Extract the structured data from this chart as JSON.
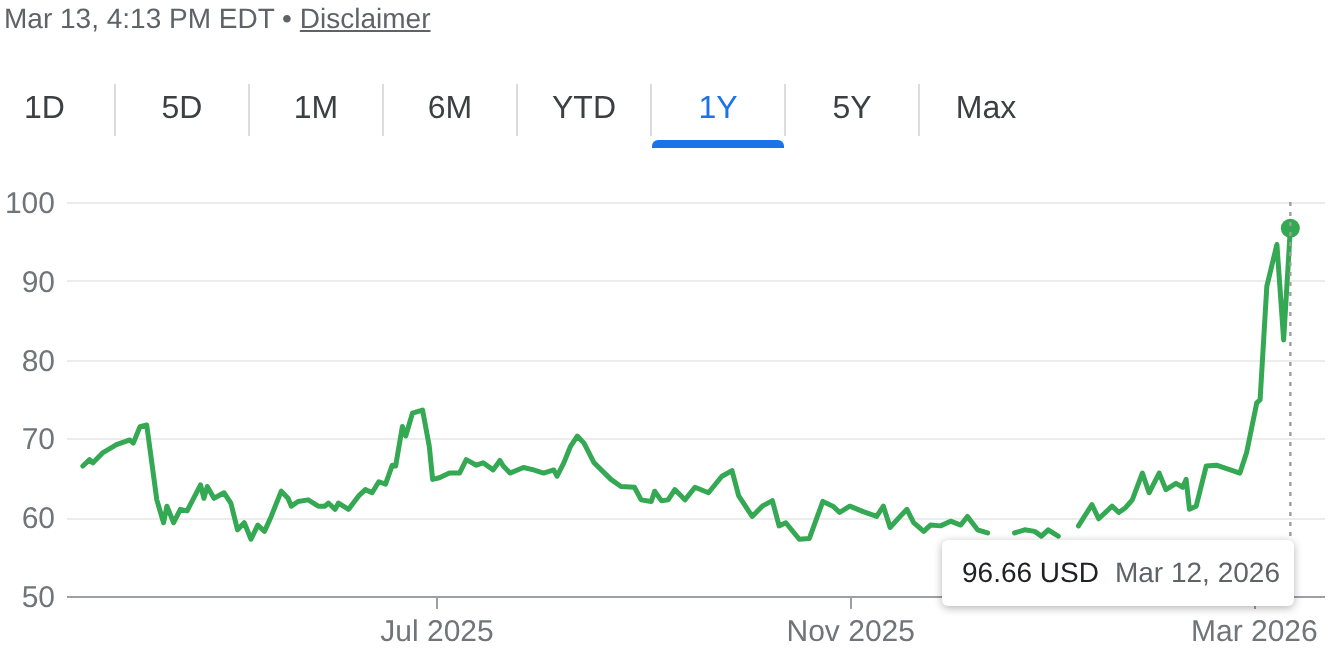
{
  "chart_data": {
    "type": "line",
    "annotations": [
      "Mar 13, 4:13 PM EDT •",
      "Disclaimer",
      "1D",
      "5D",
      "1M",
      "6M",
      "YTD",
      "1Y",
      "5Y",
      "Max",
      "96.66 USD",
      "Mar 12, 2026"
    ],
    "xlim": [
      "2025-03-13",
      "2026-03-22"
    ],
    "xticks": [
      {
        "value": "2025-07-01",
        "label": "Jul 2025"
      },
      {
        "value": "2025-11-01",
        "label": "Nov 2025"
      },
      {
        "value": "2026-03-01",
        "label": "Mar 2026"
      }
    ],
    "ylim": [
      50,
      100
    ],
    "yticks": [
      50,
      60,
      70,
      80,
      90,
      100
    ],
    "grid": "y",
    "ref_lines": [
      {
        "axis": "x",
        "value": "2026-03-12",
        "color": "#9e9e9e",
        "line_style": "dotted"
      }
    ],
    "series": [
      {
        "type": "line",
        "color": "#34a853",
        "x": [
          "2025-03-18",
          "2025-03-20",
          "2025-03-21",
          "2025-03-24",
          "2025-03-28",
          "2025-04-01",
          "2025-04-02",
          "2025-04-04",
          "2025-04-06",
          "2025-04-09",
          "2025-04-11",
          "2025-04-12",
          "2025-04-14",
          "2025-04-16",
          "2025-04-18",
          "2025-04-22",
          "2025-04-23",
          "2025-04-24",
          "2025-04-26",
          "2025-04-29",
          "2025-05-01",
          "2025-05-03",
          "2025-05-05",
          "2025-05-07",
          "2025-05-09",
          "2025-05-11",
          "2025-05-13",
          "2025-05-16",
          "2025-05-18",
          "2025-05-19",
          "2025-05-21",
          "2025-05-24",
          "2025-05-27",
          "2025-05-29",
          "2025-05-30",
          "2025-06-01",
          "2025-06-02",
          "2025-06-05",
          "2025-06-08",
          "2025-06-10",
          "2025-06-12",
          "2025-06-14",
          "2025-06-16",
          "2025-06-18",
          "2025-06-19",
          "2025-06-21",
          "2025-06-22",
          "2025-06-24",
          "2025-06-27",
          "2025-06-29",
          "2025-06-30",
          "2025-07-02",
          "2025-07-05",
          "2025-07-08",
          "2025-07-10",
          "2025-07-13",
          "2025-07-15",
          "2025-07-18",
          "2025-07-20",
          "2025-07-21",
          "2025-07-23",
          "2025-07-27",
          "2025-07-30",
          "2025-08-02",
          "2025-08-05",
          "2025-08-06",
          "2025-08-08",
          "2025-08-10",
          "2025-08-12",
          "2025-08-14",
          "2025-08-17",
          "2025-08-22",
          "2025-08-25",
          "2025-08-29",
          "2025-08-31",
          "2025-09-03",
          "2025-09-04",
          "2025-09-06",
          "2025-09-08",
          "2025-09-10",
          "2025-09-13",
          "2025-09-16",
          "2025-09-20",
          "2025-09-24",
          "2025-09-27",
          "2025-09-29",
          "2025-10-03",
          "2025-10-06",
          "2025-10-09",
          "2025-10-11",
          "2025-10-13",
          "2025-10-17",
          "2025-10-20",
          "2025-10-24",
          "2025-10-27",
          "2025-10-29",
          "2025-11-01",
          "2025-11-05",
          "2025-11-09",
          "2025-11-11",
          "2025-11-13",
          "2025-11-16",
          "2025-11-18",
          "2025-11-20",
          "2025-11-23",
          "2025-11-25",
          "2025-11-28",
          "2025-12-01",
          "2025-12-04",
          "2025-12-06",
          "2025-12-09",
          "2025-12-12",
          "2025-12-15",
          "2025-12-20",
          "2025-12-23",
          "2025-12-26",
          "2025-12-28",
          "2025-12-30",
          "2026-01-02",
          "2026-01-05",
          "2026-01-08",
          "2026-01-12",
          "2026-01-14",
          "2026-01-18",
          "2026-01-20",
          "2026-01-22",
          "2026-01-24",
          "2026-01-27",
          "2026-01-29",
          "2026-02-01",
          "2026-02-03",
          "2026-02-06",
          "2026-02-08",
          "2026-02-09",
          "2026-02-10",
          "2026-02-12",
          "2026-02-15",
          "2026-02-18",
          "2026-02-25",
          "2026-02-27",
          "2026-03-02",
          "2026-03-03",
          "2026-03-05",
          "2026-03-08",
          "2026-03-10",
          "2026-03-12"
        ],
        "values": [
          66.5,
          67.3,
          66.9,
          68.2,
          69.2,
          69.8,
          69.4,
          71.5,
          71.7,
          62.2,
          59.3,
          61.4,
          59.3,
          61.0,
          60.8,
          64.1,
          62.4,
          63.9,
          62.4,
          63.1,
          61.8,
          58.4,
          59.3,
          57.2,
          59.0,
          58.2,
          60.1,
          63.3,
          62.4,
          61.4,
          62.0,
          62.2,
          61.4,
          61.4,
          61.8,
          61.0,
          61.8,
          61.0,
          62.7,
          63.5,
          63.1,
          64.5,
          64.2,
          66.6,
          66.5,
          71.5,
          70.3,
          73.2,
          73.6,
          69.0,
          64.8,
          65.0,
          65.6,
          65.6,
          67.3,
          66.6,
          66.9,
          66.0,
          67.2,
          66.5,
          65.6,
          66.3,
          66.0,
          65.6,
          66.0,
          65.2,
          66.9,
          69.0,
          70.3,
          69.4,
          66.9,
          64.8,
          63.9,
          63.8,
          62.2,
          62.0,
          63.3,
          62.1,
          62.2,
          63.5,
          62.2,
          63.8,
          63.1,
          65.2,
          65.9,
          62.7,
          60.1,
          61.4,
          62.1,
          58.9,
          59.3,
          57.2,
          57.3,
          62.0,
          61.4,
          60.6,
          61.4,
          60.7,
          60.1,
          61.4,
          58.7,
          60.1,
          61.0,
          59.3,
          58.2,
          59.0,
          58.9,
          59.5,
          59.0,
          60.1,
          58.4,
          58.0,
          null,
          58.0,
          58.4,
          58.2,
          57.6,
          58.4,
          57.6,
          null,
          58.9,
          61.6,
          59.8,
          61.4,
          60.6,
          61.2,
          62.2,
          65.6,
          63.1,
          65.6,
          63.5,
          64.3,
          63.8,
          64.8,
          61.0,
          61.4,
          66.5,
          66.6,
          65.6,
          68.2,
          74.5,
          74.9,
          89.3,
          94.6,
          82.5,
          96.66
        ]
      },
      {
        "type": "scatter",
        "color": "#34a853",
        "x": [
          "2026-03-12"
        ],
        "values": [
          96.66
        ]
      }
    ]
  }
}
